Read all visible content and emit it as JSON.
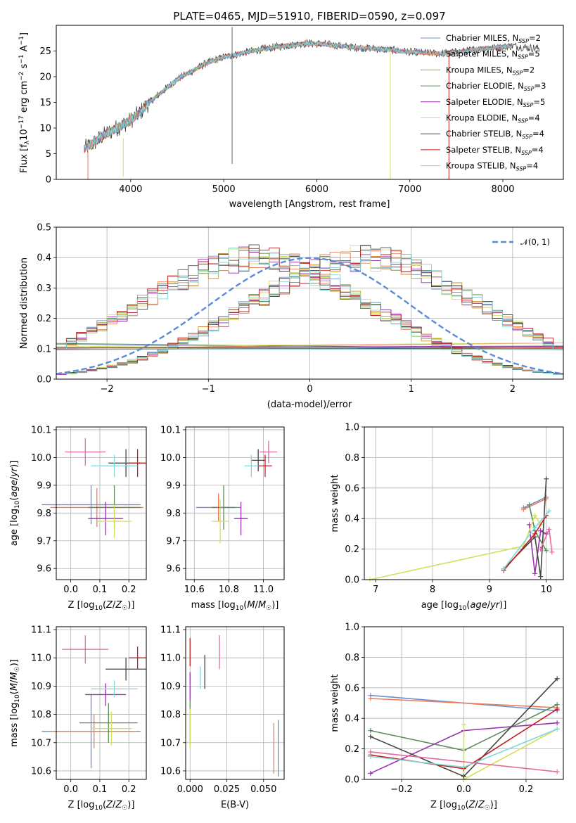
{
  "figure": {
    "title": "PLATE=0465, MJD=51910, FIBERID=0590, z=0.097"
  },
  "colors": {
    "chabrier_miles": "#6a8fcf",
    "salpeter_miles": "#f07c57",
    "kroupa_miles": "#d08a2a",
    "chabrier_elodie": "#5c8a5c",
    "salpeter_elodie": "#9a30b0",
    "kroupa_elodie": "#d5e05a",
    "chabrier_stelib": "#444444",
    "salpeter_stelib": "#c02020",
    "kroupa_stelib": "#80d8d8",
    "pink": "#e36aa0",
    "normal": "#5b8ad6"
  },
  "chart_data": [
    {
      "type": "line",
      "title": "PLATE=0465, MJD=51910, FIBERID=0590, z=0.097",
      "xlabel": "wavelength [Angstrom, rest frame]",
      "ylabel": "Flux [f_λ10^-17 erg cm^-2 s^-1 A^-1]",
      "xlim": [
        3200,
        8650
      ],
      "ylim": [
        0,
        30
      ],
      "xticks": [
        "4000",
        "5000",
        "6000",
        "7000",
        "8000"
      ],
      "yticks": [
        "0",
        "5",
        "10",
        "15",
        "20",
        "25"
      ],
      "spectrum_x": [
        3500,
        3600,
        3700,
        3800,
        3900,
        4000,
        4100,
        4200,
        4300,
        4400,
        4500,
        4600,
        4700,
        4800,
        4900,
        5000,
        5100,
        5200,
        5300,
        5400,
        5500,
        5600,
        5700,
        5800,
        5900,
        6000,
        6100,
        6200,
        6300,
        6400,
        6500,
        6600,
        6700,
        6800,
        6900,
        7000,
        7100,
        7200,
        7300,
        7400,
        7500,
        7600,
        7700,
        7800,
        7900,
        8000,
        8100,
        8200,
        8300,
        8400
      ],
      "spectrum_y": [
        6.0,
        7.0,
        8.5,
        9.5,
        10.5,
        11.5,
        13.0,
        15.0,
        16.5,
        18.0,
        19.5,
        20.5,
        21.5,
        22.5,
        23.2,
        23.8,
        24.2,
        24.6,
        25.0,
        25.3,
        25.6,
        25.9,
        26.1,
        26.3,
        26.5,
        26.4,
        26.3,
        26.1,
        25.9,
        25.7,
        25.6,
        25.5,
        25.3,
        25.2,
        25.0,
        24.8,
        24.7,
        24.6,
        24.5,
        24.6,
        24.8,
        25.0,
        25.3,
        25.5,
        25.6,
        25.8,
        26.0,
        25.8,
        25.6,
        25.5
      ],
      "series": [
        {
          "name": "Chabrier MILES, N_SSP=2",
          "label_main": "Chabrier MILES, N",
          "sub": "SSP",
          "sup_val": "=2",
          "color_key": "chabrier_miles"
        },
        {
          "name": "Salpeter MILES, N_SSP=5",
          "label_main": "Salpeter MILES, N",
          "sub": "SSP",
          "sup_val": "=5",
          "color_key": "salpeter_miles"
        },
        {
          "name": "Kroupa MILES, N_SSP=2",
          "label_main": "Kroupa MILES, N",
          "sub": "SSP",
          "sup_val": "=2",
          "color_key": "kroupa_miles"
        },
        {
          "name": "Chabrier ELODIE, N_SSP=3",
          "label_main": "Chabrier ELODIE, N",
          "sub": "SSP",
          "sup_val": "=3",
          "color_key": "chabrier_elodie"
        },
        {
          "name": "Salpeter ELODIE, N_SSP=5",
          "label_main": "Salpeter ELODIE, N",
          "sub": "SSP",
          "sup_val": "=5",
          "color_key": "salpeter_elodie"
        },
        {
          "name": "Kroupa ELODIE, N_SSP=4",
          "label_main": "Kroupa ELODIE, N",
          "sub": "SSP",
          "sup_val": "=4",
          "color_key": "kroupa_elodie"
        },
        {
          "name": "Chabrier STELIB, N_SSP=4",
          "label_main": "Chabrier STELIB, N",
          "sub": "SSP",
          "sup_val": "=4",
          "color_key": "chabrier_stelib"
        },
        {
          "name": "Salpeter STELIB, N_SSP=4",
          "label_main": "Salpeter STELIB, N",
          "sub": "SSP",
          "sup_val": "=4",
          "color_key": "salpeter_stelib"
        },
        {
          "name": "Kroupa STELIB, N_SSP=4",
          "label_main": "Kroupa STELIB, N",
          "sub": "SSP",
          "sup_val": "=4",
          "color_key": "kroupa_stelib"
        }
      ]
    },
    {
      "type": "histogram",
      "xlabel": "(data-model)/error",
      "ylabel": "Normed distribution",
      "xlim": [
        -2.5,
        2.5
      ],
      "ylim": [
        0,
        0.5
      ],
      "xticks": [
        "−2",
        "−1",
        "0",
        "1",
        "2"
      ],
      "yticks": [
        "0.0",
        "0.1",
        "0.2",
        "0.3",
        "0.4",
        "0.5"
      ],
      "legend": "𝒩(0, 1)",
      "normal_mean": 0,
      "normal_sigma": 1,
      "bin_width": 0.1,
      "hist_base": [
        0.017,
        0.02,
        0.024,
        0.029,
        0.035,
        0.042,
        0.05,
        0.059,
        0.07,
        0.081,
        0.094,
        0.108,
        0.123,
        0.139,
        0.156,
        0.174,
        0.193,
        0.212,
        0.232,
        0.252,
        0.272,
        0.291,
        0.31,
        0.328,
        0.344,
        0.359,
        0.372,
        0.383,
        0.391,
        0.397,
        0.399,
        0.397,
        0.391,
        0.383,
        0.372,
        0.359,
        0.344,
        0.328,
        0.31,
        0.291,
        0.272,
        0.252,
        0.232,
        0.212,
        0.193,
        0.174,
        0.156,
        0.139,
        0.123,
        0.108
      ]
    },
    {
      "type": "errorbar",
      "xlabel": "Z [log10(Z/Z☉)]",
      "ylabel": "age  [log10(age/yr)]",
      "xlim": [
        -0.05,
        0.26
      ],
      "ylim": [
        9.56,
        10.11
      ],
      "xticks": [
        "0.0",
        "0.1",
        "0.2"
      ],
      "yticks": [
        "9.6",
        "9.7",
        "9.8",
        "9.9",
        "10.0",
        "10.1"
      ],
      "points": [
        {
          "x": 0.07,
          "xerr": 0.17,
          "y": 9.83,
          "yerr": 0.07,
          "color_key": "chabrier_miles"
        },
        {
          "x": 0.09,
          "xerr": 0.16,
          "y": 9.82,
          "yerr": 0.07,
          "color_key": "salpeter_miles"
        },
        {
          "x": 0.15,
          "xerr": 0.09,
          "y": 9.82,
          "yerr": 0.08,
          "color_key": "chabrier_elodie"
        },
        {
          "x": 0.12,
          "xerr": 0.06,
          "y": 9.78,
          "yerr": 0.06,
          "color_key": "salpeter_elodie"
        },
        {
          "x": 0.15,
          "xerr": 0.06,
          "y": 9.77,
          "yerr": 0.06,
          "color_key": "kroupa_elodie"
        },
        {
          "x": 0.19,
          "xerr": 0.06,
          "y": 9.98,
          "yerr": 0.05,
          "color_key": "chabrier_stelib"
        },
        {
          "x": 0.23,
          "xerr": 0.03,
          "y": 9.98,
          "yerr": 0.05,
          "color_key": "salpeter_stelib"
        },
        {
          "x": 0.15,
          "xerr": 0.08,
          "y": 9.97,
          "yerr": 0.04,
          "color_key": "kroupa_stelib"
        },
        {
          "x": 0.05,
          "xerr": 0.07,
          "y": 10.02,
          "yerr": 0.05,
          "color_key": "pink"
        }
      ]
    },
    {
      "type": "errorbar",
      "xlabel": "mass [log10(M/M☉)]",
      "ylabel": "",
      "xlim": [
        10.55,
        11.12
      ],
      "ylim": [
        9.56,
        10.11
      ],
      "xticks": [
        "10.6",
        "10.8",
        "11.0"
      ],
      "yticks": [
        "9.6",
        "9.7",
        "9.8",
        "9.9",
        "10.0",
        "10.1"
      ],
      "points": [
        {
          "x": 10.74,
          "xerr": 0.13,
          "y": 9.82,
          "yerr": 0.05,
          "color_key": "chabrier_miles"
        },
        {
          "x": 10.74,
          "xerr": 0.05,
          "y": 9.82,
          "yerr": 0.05,
          "color_key": "salpeter_miles"
        },
        {
          "x": 10.77,
          "xerr": 0.07,
          "y": 9.82,
          "yerr": 0.08,
          "color_key": "chabrier_elodie"
        },
        {
          "x": 10.87,
          "xerr": 0.04,
          "y": 9.78,
          "yerr": 0.06,
          "color_key": "salpeter_elodie"
        },
        {
          "x": 10.75,
          "xerr": 0.05,
          "y": 9.77,
          "yerr": 0.08,
          "color_key": "kroupa_elodie"
        },
        {
          "x": 10.97,
          "xerr": 0.04,
          "y": 9.99,
          "yerr": 0.04,
          "color_key": "chabrier_stelib"
        },
        {
          "x": 11.01,
          "xerr": 0.04,
          "y": 9.97,
          "yerr": 0.04,
          "color_key": "salpeter_stelib"
        },
        {
          "x": 10.93,
          "xerr": 0.04,
          "y": 9.97,
          "yerr": 0.04,
          "color_key": "kroupa_stelib"
        },
        {
          "x": 11.03,
          "xerr": 0.05,
          "y": 10.02,
          "yerr": 0.04,
          "color_key": "pink"
        }
      ]
    },
    {
      "type": "line",
      "xlabel": "age  [log10(age/yr)]",
      "ylabel": "mass weight",
      "xlim": [
        6.8,
        10.3
      ],
      "ylim": [
        0,
        1.0
      ],
      "xticks": [
        "7",
        "8",
        "9",
        "10"
      ],
      "yticks": [
        "0.0",
        "0.2",
        "0.4",
        "0.6",
        "0.8",
        "1.0"
      ],
      "series": [
        {
          "color_key": "chabrier_miles",
          "x": [
            9.6,
            10.0
          ],
          "y": [
            0.47,
            0.54
          ]
        },
        {
          "color_key": "salpeter_miles",
          "x": [
            9.6,
            10.0
          ],
          "y": [
            0.46,
            0.53
          ]
        },
        {
          "color_key": "chabrier_elodie",
          "x": [
            9.7,
            9.8,
            10.0
          ],
          "y": [
            0.49,
            0.32,
            0.19
          ]
        },
        {
          "color_key": "salpeter_elodie",
          "x": [
            9.7,
            9.8,
            9.9,
            10.0
          ],
          "y": [
            0.36,
            0.04,
            0.32,
            0.3
          ]
        },
        {
          "color_key": "kroupa_elodie",
          "x": [
            6.9,
            9.6,
            9.8,
            9.9
          ],
          "y": [
            0.0,
            0.22,
            0.42,
            0.36
          ]
        },
        {
          "color_key": "chabrier_stelib",
          "x": [
            9.25,
            9.8,
            9.9,
            10.0
          ],
          "y": [
            0.07,
            0.28,
            0.02,
            0.66
          ]
        },
        {
          "color_key": "salpeter_stelib",
          "x": [
            9.25,
            9.8,
            10.0
          ],
          "y": [
            0.06,
            0.3,
            0.42
          ]
        },
        {
          "color_key": "kroupa_stelib",
          "x": [
            9.25,
            9.8,
            10.05
          ],
          "y": [
            0.07,
            0.34,
            0.45
          ]
        },
        {
          "color_key": "pink",
          "x": [
            9.9,
            10.05,
            10.1
          ],
          "y": [
            0.2,
            0.33,
            0.18
          ]
        }
      ]
    },
    {
      "type": "errorbar",
      "xlabel": "Z [log10(Z/Z☉)]",
      "ylabel": "mass [log10(M/M☉)]",
      "xlim": [
        -0.05,
        0.26
      ],
      "ylim": [
        10.57,
        11.11
      ],
      "xticks": [
        "0.0",
        "0.1",
        "0.2"
      ],
      "yticks": [
        "10.6",
        "10.7",
        "10.8",
        "10.9",
        "11.0",
        "11.1"
      ],
      "points": [
        {
          "x": 0.07,
          "xerr": 0.17,
          "y": 10.74,
          "yerr": 0.13,
          "color_key": "chabrier_miles"
        },
        {
          "x": 0.08,
          "xerr": 0.15,
          "y": 10.74,
          "yerr": 0.06,
          "color_key": "salpeter_miles"
        },
        {
          "x": 0.13,
          "xerr": 0.1,
          "y": 10.77,
          "yerr": 0.07,
          "color_key": "chabrier_elodie"
        },
        {
          "x": 0.12,
          "xerr": 0.07,
          "y": 10.87,
          "yerr": 0.04,
          "color_key": "salpeter_elodie"
        },
        {
          "x": 0.14,
          "xerr": 0.07,
          "y": 10.75,
          "yerr": 0.06,
          "color_key": "kroupa_elodie"
        },
        {
          "x": 0.19,
          "xerr": 0.07,
          "y": 10.96,
          "yerr": 0.04,
          "color_key": "chabrier_stelib"
        },
        {
          "x": 0.23,
          "xerr": 0.03,
          "y": 11.0,
          "yerr": 0.04,
          "color_key": "salpeter_stelib"
        },
        {
          "x": 0.15,
          "xerr": 0.08,
          "y": 10.89,
          "yerr": 0.03,
          "color_key": "kroupa_stelib"
        },
        {
          "x": 0.05,
          "xerr": 0.08,
          "y": 11.03,
          "yerr": 0.05,
          "color_key": "pink"
        }
      ]
    },
    {
      "type": "errorbar",
      "xlabel": "E(B-V)",
      "ylabel": "",
      "xlim": [
        -0.003,
        0.064
      ],
      "ylim": [
        10.57,
        11.11
      ],
      "xticks": [
        "0.000",
        "0.025",
        "0.050"
      ],
      "yticks": [
        "10.6",
        "10.7",
        "10.8",
        "10.9",
        "11.0",
        "11.1"
      ],
      "points": [
        {
          "x": 0.06,
          "xerr": 0.0,
          "y": 10.68,
          "yerr": 0.1,
          "color_key": "chabrier_miles"
        },
        {
          "x": 0.057,
          "xerr": 0.0,
          "y": 10.68,
          "yerr": 0.09,
          "color_key": "salpeter_miles"
        },
        {
          "x": 0.0,
          "xerr": 0.0,
          "y": 10.77,
          "yerr": 0.08,
          "color_key": "chabrier_elodie"
        },
        {
          "x": 0.0,
          "xerr": 0.0,
          "y": 10.9,
          "yerr": 0.05,
          "color_key": "salpeter_elodie"
        },
        {
          "x": 0.0,
          "xerr": 0.0,
          "y": 10.75,
          "yerr": 0.07,
          "color_key": "kroupa_elodie"
        },
        {
          "x": 0.01,
          "xerr": 0.0,
          "y": 10.95,
          "yerr": 0.06,
          "color_key": "chabrier_stelib"
        },
        {
          "x": 0.0,
          "xerr": 0.0,
          "y": 11.02,
          "yerr": 0.05,
          "color_key": "salpeter_stelib"
        },
        {
          "x": 0.007,
          "xerr": 0.0,
          "y": 10.93,
          "yerr": 0.04,
          "color_key": "kroupa_stelib"
        },
        {
          "x": 0.02,
          "xerr": 0.0,
          "y": 11.02,
          "yerr": 0.06,
          "color_key": "pink"
        }
      ]
    },
    {
      "type": "line",
      "xlabel": "Z [log10(Z/Z☉)]",
      "ylabel": "mass weight",
      "xlim": [
        -0.32,
        0.32
      ],
      "ylim": [
        0,
        1.0
      ],
      "xticks": [
        "−0.2",
        "0.0",
        "0.2"
      ],
      "yticks": [
        "0.0",
        "0.2",
        "0.4",
        "0.6",
        "0.8",
        "1.0"
      ],
      "series": [
        {
          "color_key": "chabrier_miles",
          "x": [
            -0.3,
            0.3
          ],
          "y": [
            0.55,
            0.45
          ]
        },
        {
          "color_key": "salpeter_miles",
          "x": [
            -0.3,
            0.3
          ],
          "y": [
            0.53,
            0.47
          ]
        },
        {
          "color_key": "chabrier_elodie",
          "x": [
            -0.3,
            0.0,
            0.3
          ],
          "y": [
            0.32,
            0.19,
            0.49
          ]
        },
        {
          "color_key": "salpeter_elodie",
          "x": [
            -0.3,
            0.0,
            0.3
          ],
          "y": [
            0.04,
            0.32,
            0.37
          ]
        },
        {
          "color_key": "kroupa_elodie",
          "x": [
            0.0,
            0.0,
            0.3
          ],
          "y": [
            0.36,
            0.0,
            0.33
          ]
        },
        {
          "color_key": "chabrier_stelib",
          "x": [
            -0.3,
            0.0,
            0.3
          ],
          "y": [
            0.28,
            0.02,
            0.66
          ]
        },
        {
          "color_key": "salpeter_stelib",
          "x": [
            -0.3,
            0.0,
            0.3
          ],
          "y": [
            0.16,
            0.07,
            0.46
          ]
        },
        {
          "color_key": "kroupa_stelib",
          "x": [
            -0.3,
            0.0,
            0.3
          ],
          "y": [
            0.15,
            0.08,
            0.33
          ]
        },
        {
          "color_key": "pink",
          "x": [
            -0.3,
            0.3
          ],
          "y": [
            0.18,
            0.05
          ]
        }
      ]
    }
  ]
}
